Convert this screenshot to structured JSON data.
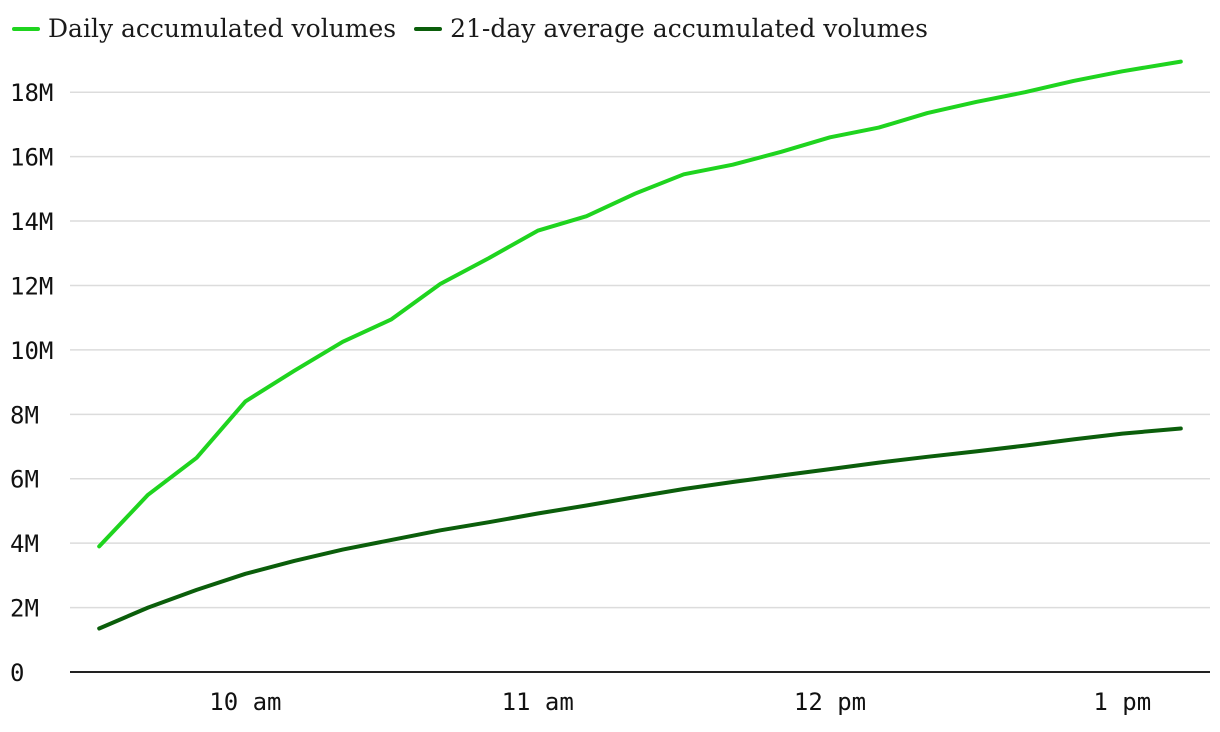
{
  "chart_data": {
    "type": "line",
    "title": "",
    "xlabel": "",
    "ylabel": "",
    "x": [
      9.5,
      9.667,
      9.833,
      10.0,
      10.167,
      10.333,
      10.5,
      10.667,
      10.833,
      11.0,
      11.167,
      11.333,
      11.5,
      11.667,
      11.833,
      12.0,
      12.167,
      12.333,
      12.5,
      12.667,
      12.833,
      13.0,
      13.2
    ],
    "x_ticks": [
      {
        "value": 10,
        "label": "10 am"
      },
      {
        "value": 11,
        "label": "11 am"
      },
      {
        "value": 12,
        "label": "12 pm"
      },
      {
        "value": 13,
        "label": "1 pm"
      }
    ],
    "xlim": [
      9.4,
      13.3
    ],
    "y_ticks": [
      {
        "value": 0,
        "label": "0"
      },
      {
        "value": 2000000,
        "label": "2M"
      },
      {
        "value": 4000000,
        "label": "4M"
      },
      {
        "value": 6000000,
        "label": "6M"
      },
      {
        "value": 8000000,
        "label": "8M"
      },
      {
        "value": 10000000,
        "label": "10M"
      },
      {
        "value": 12000000,
        "label": "12M"
      },
      {
        "value": 14000000,
        "label": "14M"
      },
      {
        "value": 16000000,
        "label": "16M"
      },
      {
        "value": 18000000,
        "label": "18M"
      }
    ],
    "ylim": [
      0,
      19000000
    ],
    "grid": true,
    "legend_position": "top-left",
    "series": [
      {
        "name": "Daily accumulated volumes",
        "color": "#1fd41f",
        "values": [
          3900000,
          5500000,
          6650000,
          8400000,
          9350000,
          10250000,
          10950000,
          12050000,
          12850000,
          13700000,
          14150000,
          14850000,
          15450000,
          15750000,
          16150000,
          16600000,
          16900000,
          17350000,
          17700000,
          18000000,
          18350000,
          18650000,
          18950000
        ]
      },
      {
        "name": "21-day average accumulated volumes",
        "color": "#0b5e0b",
        "values": [
          1350000,
          2000000,
          2550000,
          3050000,
          3450000,
          3800000,
          4100000,
          4400000,
          4650000,
          4920000,
          5170000,
          5430000,
          5680000,
          5900000,
          6100000,
          6300000,
          6500000,
          6680000,
          6850000,
          7030000,
          7220000,
          7400000,
          7560000
        ]
      }
    ]
  }
}
